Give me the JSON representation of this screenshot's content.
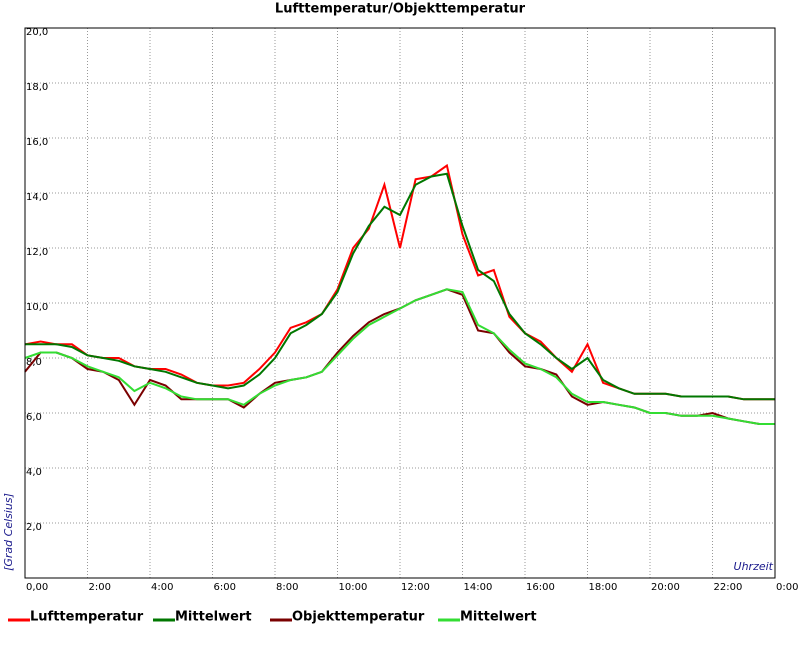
{
  "chart_data": {
    "type": "line",
    "title": "Lufttemperatur/Objekttemperatur",
    "x_label": "Uhrzeit",
    "y_label": "[Grad Celsius]",
    "x": [
      0,
      0.5,
      1,
      1.5,
      2,
      2.5,
      3,
      3.5,
      4,
      4.5,
      5,
      5.5,
      6,
      6.5,
      7,
      7.5,
      8,
      8.5,
      9,
      9.5,
      10,
      10.5,
      11,
      11.5,
      12,
      12.5,
      13,
      13.5,
      14,
      14.5,
      15,
      15.5,
      16,
      16.5,
      17,
      17.5,
      18,
      18.5,
      19,
      19.5,
      20,
      20.5,
      21,
      21.5,
      22,
      22.5,
      23,
      23.5,
      24
    ],
    "xlim": [
      0,
      24
    ],
    "xticks": [
      {
        "value": 0,
        "label": "0,00"
      },
      {
        "value": 2,
        "label": "2:00"
      },
      {
        "value": 4,
        "label": "4:00"
      },
      {
        "value": 6,
        "label": "6:00"
      },
      {
        "value": 8,
        "label": "8:00"
      },
      {
        "value": 10,
        "label": "10:00"
      },
      {
        "value": 12,
        "label": "12:00"
      },
      {
        "value": 14,
        "label": "14:00"
      },
      {
        "value": 16,
        "label": "16:00"
      },
      {
        "value": 18,
        "label": "18:00"
      },
      {
        "value": 20,
        "label": "20:00"
      },
      {
        "value": 22,
        "label": "22:00"
      },
      {
        "value": 24,
        "label": "0:00"
      }
    ],
    "ylim": [
      0,
      20
    ],
    "yticks": [
      {
        "value": 2,
        "label": "2,0"
      },
      {
        "value": 4,
        "label": "4,0"
      },
      {
        "value": 6,
        "label": "6,0"
      },
      {
        "value": 8,
        "label": "8,0"
      },
      {
        "value": 10,
        "label": "10,0"
      },
      {
        "value": 12,
        "label": "12,0"
      },
      {
        "value": 14,
        "label": "14,0"
      },
      {
        "value": 16,
        "label": "16,0"
      },
      {
        "value": 18,
        "label": "18,0"
      },
      {
        "value": 20,
        "label": "20,0"
      }
    ],
    "grid": true,
    "series": [
      {
        "name": "Lufttemperatur",
        "color": "#ff0000",
        "values": [
          8.5,
          8.6,
          8.5,
          8.5,
          8.1,
          8.0,
          8.0,
          7.7,
          7.6,
          7.6,
          7.4,
          7.1,
          7.0,
          7.0,
          7.1,
          7.6,
          8.2,
          9.1,
          9.3,
          9.6,
          10.5,
          12.0,
          12.7,
          14.3,
          12.0,
          14.5,
          14.6,
          15.0,
          12.5,
          11.0,
          11.2,
          9.5,
          8.9,
          8.6,
          8.0,
          7.5,
          8.5,
          7.1,
          6.9,
          6.7,
          6.7,
          6.7,
          6.6,
          6.6,
          6.6,
          6.6,
          6.5,
          6.5,
          6.5
        ]
      },
      {
        "name": "Mittelwert",
        "color": "#007700",
        "values": [
          8.5,
          8.5,
          8.5,
          8.4,
          8.1,
          8.0,
          7.9,
          7.7,
          7.6,
          7.5,
          7.3,
          7.1,
          7.0,
          6.9,
          7.0,
          7.4,
          8.0,
          8.9,
          9.2,
          9.6,
          10.4,
          11.8,
          12.8,
          13.5,
          13.2,
          14.3,
          14.6,
          14.7,
          12.8,
          11.2,
          10.8,
          9.6,
          8.9,
          8.5,
          8.0,
          7.6,
          8.0,
          7.2,
          6.9,
          6.7,
          6.7,
          6.7,
          6.6,
          6.6,
          6.6,
          6.6,
          6.5,
          6.5,
          6.5
        ]
      },
      {
        "name": "Objekttemperatur",
        "color": "#7a0000",
        "values": [
          7.5,
          8.2,
          8.2,
          8.0,
          7.6,
          7.5,
          7.2,
          6.3,
          7.2,
          7.0,
          6.5,
          6.5,
          6.5,
          6.5,
          6.2,
          6.7,
          7.1,
          7.2,
          7.3,
          7.5,
          8.2,
          8.8,
          9.3,
          9.6,
          9.8,
          10.1,
          10.3,
          10.5,
          10.3,
          9.0,
          8.9,
          8.2,
          7.7,
          7.6,
          7.4,
          6.6,
          6.3,
          6.4,
          6.3,
          6.2,
          6.0,
          6.0,
          5.9,
          5.9,
          6.0,
          5.8,
          5.7,
          5.6,
          5.6
        ]
      },
      {
        "name": "Mittelwert",
        "color": "#33dd33",
        "values": [
          8.0,
          8.2,
          8.2,
          8.0,
          7.7,
          7.5,
          7.3,
          6.8,
          7.1,
          6.9,
          6.6,
          6.5,
          6.5,
          6.5,
          6.3,
          6.7,
          7.0,
          7.2,
          7.3,
          7.5,
          8.1,
          8.7,
          9.2,
          9.5,
          9.8,
          10.1,
          10.3,
          10.5,
          10.4,
          9.2,
          8.9,
          8.3,
          7.8,
          7.6,
          7.3,
          6.7,
          6.4,
          6.4,
          6.3,
          6.2,
          6.0,
          6.0,
          5.9,
          5.9,
          5.9,
          5.8,
          5.7,
          5.6,
          5.6
        ]
      }
    ]
  }
}
